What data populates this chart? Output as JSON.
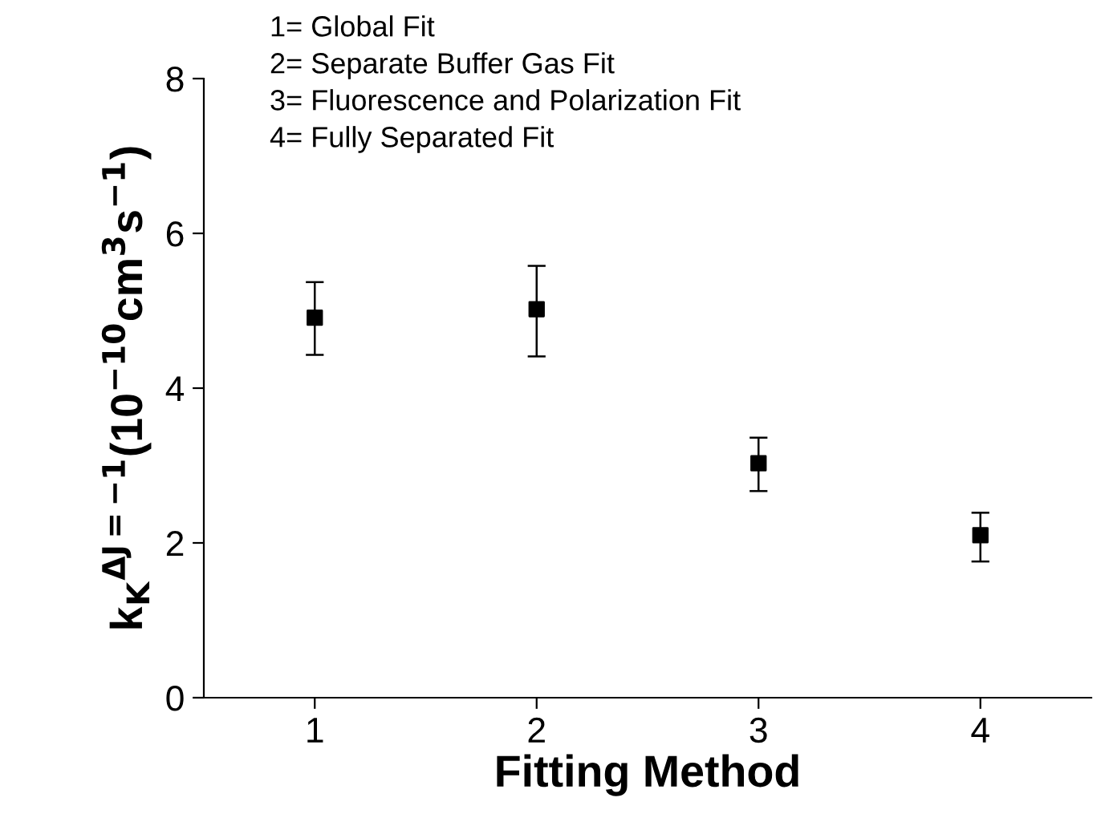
{
  "chart_data": {
    "type": "scatter",
    "xlabel": "Fitting Method",
    "ylabel": "k$_{K}$$^{ΔJ=−1}$(10$^{−10}$cm$^{3}$s$^{−1}$)",
    "x": [
      1,
      2,
      3,
      4
    ],
    "values": [
      4.91,
      5.02,
      3.03,
      2.1
    ],
    "errors": [
      [
        4.43,
        5.37
      ],
      [
        4.41,
        5.58
      ],
      [
        2.67,
        3.36
      ],
      [
        1.76,
        2.39
      ]
    ],
    "color": "#000000",
    "marker": "square",
    "xlim": [
      0.5,
      4.5
    ],
    "xticks": [
      1,
      2,
      3,
      4
    ],
    "ylim": [
      0,
      8
    ],
    "yticks": [
      0,
      2,
      4,
      6,
      8
    ],
    "annotations": [
      "1= Global Fit",
      "2= Separate Buffer Gas Fit",
      "3= Fluorescence and Polarization Fit",
      "4= Fully Separated Fit"
    ]
  }
}
